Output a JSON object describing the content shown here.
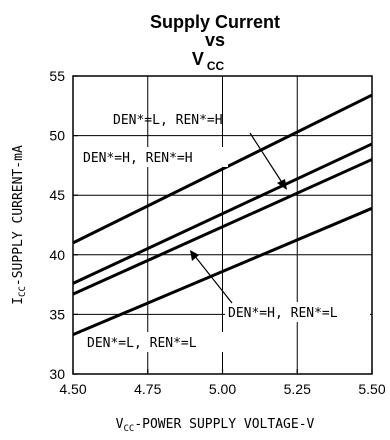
{
  "chart_data": {
    "type": "line",
    "title_line1": "Supply Current",
    "title_line2": "vs",
    "title_line3_main": "V",
    "title_line3_sub": "CC",
    "xlabel_sub": "CC",
    "xlabel_prefix": "V",
    "xlabel_rest": "-POWER SUPPLY VOLTAGE-V",
    "ylabel_prefix": "I",
    "ylabel_sub": "CC",
    "ylabel_rest": "-SUPPLY CURRENT-mA",
    "xlim": [
      4.5,
      5.5
    ],
    "ylim": [
      30,
      55
    ],
    "x_ticks": [
      "4.50",
      "4.75",
      "5.00",
      "5.25",
      "5.50"
    ],
    "y_ticks": [
      "30",
      "35",
      "40",
      "45",
      "50",
      "55"
    ],
    "grid": true,
    "x": [
      4.5,
      5.5
    ],
    "series": [
      {
        "values": [
          41.0,
          53.4
        ]
      },
      {
        "values": [
          37.6,
          49.3
        ]
      },
      {
        "values": [
          36.7,
          48.0
        ]
      },
      {
        "values": [
          33.3,
          43.9
        ]
      }
    ],
    "annotations": [
      {
        "text": "DEN*=L, REN*=H"
      },
      {
        "text": "DEN*=H, REN*=H"
      },
      {
        "text": "DEN*=H, REN*=L"
      },
      {
        "text": "DEN*=L, REN*=L"
      }
    ]
  }
}
